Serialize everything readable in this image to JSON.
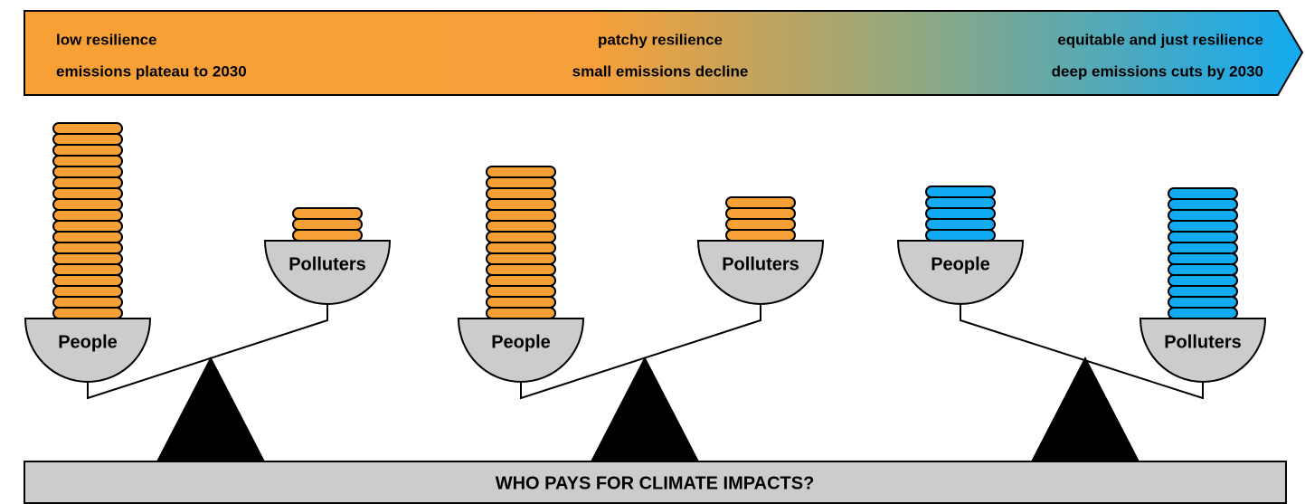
{
  "header": {
    "stages": [
      {
        "title": "low resilience",
        "subtitle": "emissions plateau to 2030"
      },
      {
        "title": "patchy resilience",
        "subtitle": "small emissions decline"
      },
      {
        "title": "equitable and just resilience",
        "subtitle": "deep emissions cuts by 2030"
      }
    ]
  },
  "scales": [
    {
      "left": "People",
      "right": "Polluters"
    },
    {
      "left": "People",
      "right": "Polluters"
    },
    {
      "left": "People",
      "right": "Polluters"
    }
  ],
  "footer": {
    "title": "WHO PAYS FOR CLIMATE IMPACTS?"
  }
}
